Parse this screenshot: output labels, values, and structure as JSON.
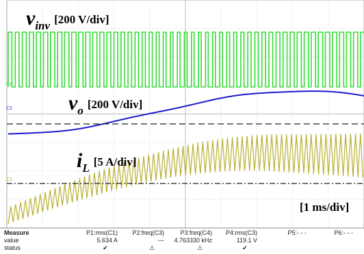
{
  "labels": {
    "vinv": {
      "symbol": "v",
      "subscript": "inv",
      "scale": "[200 V/div]"
    },
    "vo": {
      "symbol": "v",
      "subscript": "o",
      "scale": "[200 V/div]"
    },
    "iL": {
      "symbol": "i",
      "subscript": "L",
      "scale": "[5 A/div]"
    },
    "timebase": "[1 ms/div]"
  },
  "channel_markers": [
    "C4",
    "C2",
    "C1"
  ],
  "measure": {
    "row_labels": [
      "Measure",
      "value",
      "status"
    ],
    "columns": [
      {
        "name": "P1:rms(C1)",
        "value": "5.634 A",
        "status": "✔"
      },
      {
        "name": "P2:freq(C3)",
        "value": "---",
        "status": "⚠"
      },
      {
        "name": "P3:freq(C4)",
        "value": "4.763330 kHz",
        "status": "⚠"
      },
      {
        "name": "P4:rms(C3)",
        "value": "119.1 V",
        "status": "✔"
      },
      {
        "name": "P5:- - -"
      },
      {
        "name": "P6:- - -"
      }
    ]
  }
}
